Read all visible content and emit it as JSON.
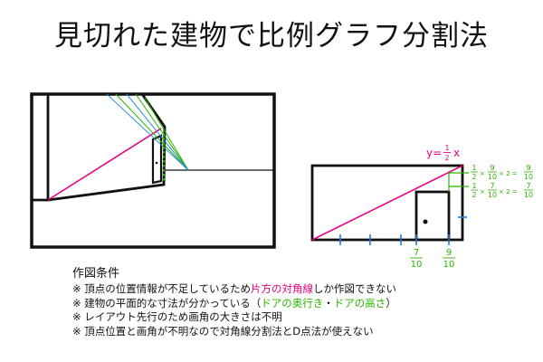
{
  "title": "見切れた建物で比例グラフ分割法",
  "colors": {
    "outline": "#111111",
    "diagonal": "#e6007e",
    "construction_green": "#2bb300",
    "construction_blue": "#2a8fdc",
    "tick_blue": "#1e78d2"
  },
  "right_figure": {
    "equation": {
      "lhs": "y=",
      "num": "1",
      "den": "2",
      "var": "x"
    },
    "height_formulas": [
      {
        "half_num": "1",
        "half_den": "2",
        "times1": "×",
        "frac_num": "9",
        "frac_den": "10",
        "times2": "× 2 =",
        "res_num": "9",
        "res_den": "10"
      },
      {
        "half_num": "1",
        "half_den": "2",
        "times1": "×",
        "frac_num": "7",
        "frac_den": "10",
        "times2": "× 2 =",
        "res_num": "7",
        "res_den": "10"
      }
    ],
    "x_labels": [
      {
        "num": "7",
        "den": "10"
      },
      {
        "num": "9",
        "den": "10"
      }
    ]
  },
  "conditions": {
    "heading": "作図条件",
    "items": [
      {
        "parts": [
          {
            "text": "※ 頂点の位置情報が不足しているため"
          },
          {
            "text": "片方の対角線",
            "color": "pink"
          },
          {
            "text": "しか作図できない"
          }
        ]
      },
      {
        "parts": [
          {
            "text": "※ 建物の平面的な寸法が分かっている（"
          },
          {
            "text": "ドアの奥行き",
            "color": "green"
          },
          {
            "text": "・"
          },
          {
            "text": "ドアの高さ",
            "color": "green"
          },
          {
            "text": "）"
          }
        ]
      },
      {
        "parts": [
          {
            "text": "※ レイアウト先行のため画角の大きさは不明"
          }
        ]
      },
      {
        "parts": [
          {
            "text": "※ 頂点位置と画角が不明なので対角線分割法とD点法が使えない"
          }
        ]
      }
    ]
  }
}
